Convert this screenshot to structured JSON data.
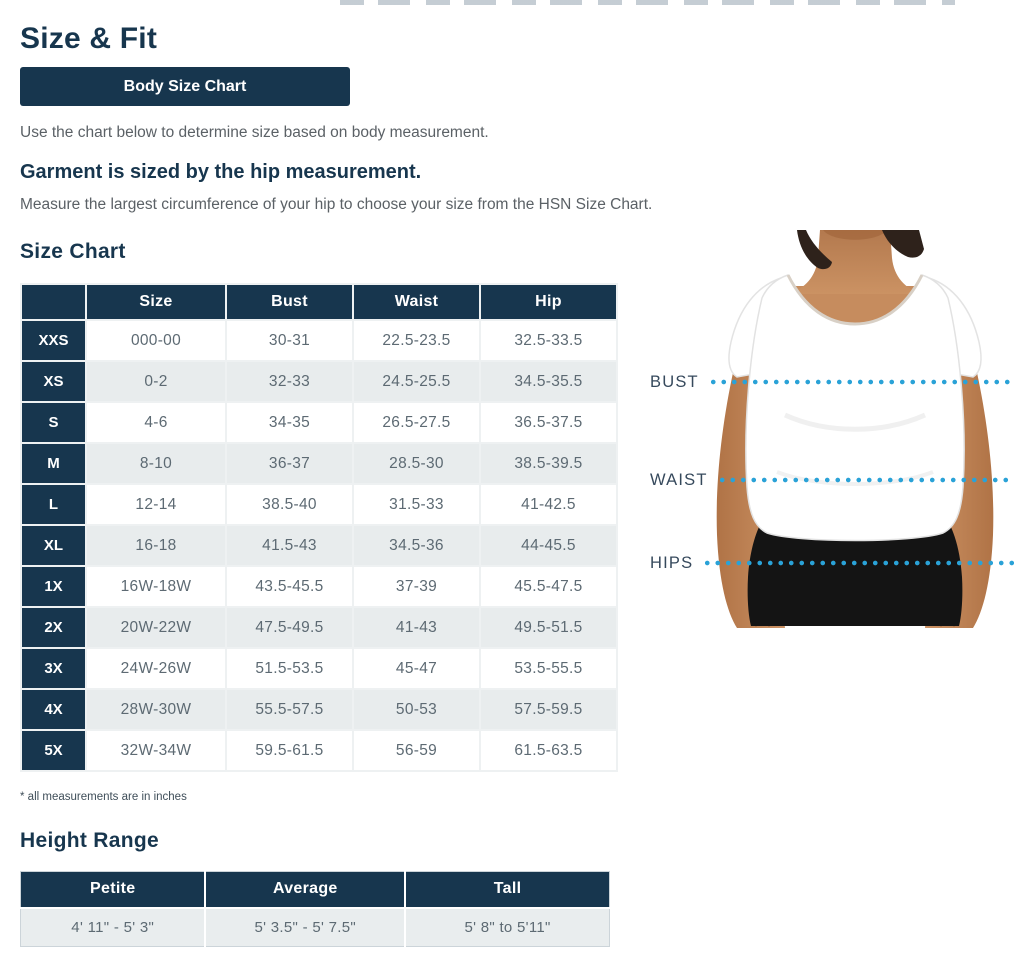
{
  "page": {
    "title": "Size & Fit",
    "button": "Body Size Chart",
    "intro": "Use the chart below to determine size based on body measurement.",
    "garment_heading": "Garment is sized by the hip measurement.",
    "garment_sub": "Measure the largest circumference of your hip to choose your size from the HSN Size Chart."
  },
  "size_chart": {
    "heading": "Size Chart",
    "columns": [
      "Size",
      "Bust",
      "Waist",
      "Hip"
    ],
    "rows": [
      {
        "label": "XXS",
        "size": "000-00",
        "bust": "30-31",
        "waist": "22.5-23.5",
        "hip": "32.5-33.5"
      },
      {
        "label": "XS",
        "size": "0-2",
        "bust": "32-33",
        "waist": "24.5-25.5",
        "hip": "34.5-35.5"
      },
      {
        "label": "S",
        "size": "4-6",
        "bust": "34-35",
        "waist": "26.5-27.5",
        "hip": "36.5-37.5"
      },
      {
        "label": "M",
        "size": "8-10",
        "bust": "36-37",
        "waist": "28.5-30",
        "hip": "38.5-39.5"
      },
      {
        "label": "L",
        "size": "12-14",
        "bust": "38.5-40",
        "waist": "31.5-33",
        "hip": "41-42.5"
      },
      {
        "label": "XL",
        "size": "16-18",
        "bust": "41.5-43",
        "waist": "34.5-36",
        "hip": "44-45.5"
      },
      {
        "label": "1X",
        "size": "16W-18W",
        "bust": "43.5-45.5",
        "waist": "37-39",
        "hip": "45.5-47.5"
      },
      {
        "label": "2X",
        "size": "20W-22W",
        "bust": "47.5-49.5",
        "waist": "41-43",
        "hip": "49.5-51.5"
      },
      {
        "label": "3X",
        "size": "24W-26W",
        "bust": "51.5-53.5",
        "waist": "45-47",
        "hip": "53.5-55.5"
      },
      {
        "label": "4X",
        "size": "28W-30W",
        "bust": "55.5-57.5",
        "waist": "50-53",
        "hip": "57.5-59.5"
      },
      {
        "label": "5X",
        "size": "32W-34W",
        "bust": "59.5-61.5",
        "waist": "56-59",
        "hip": "61.5-63.5"
      }
    ],
    "footnote": "* all measurements are in inches"
  },
  "figure": {
    "labels": [
      "BUST",
      "WAIST",
      "HIPS"
    ]
  },
  "height_range": {
    "heading": "Height Range",
    "columns": [
      "Petite",
      "Average",
      "Tall"
    ],
    "values": [
      "4' 11\" - 5' 3\"",
      "5' 3.5\" - 5' 7.5\"",
      "5' 8\" to 5'11\""
    ]
  },
  "colors": {
    "navy": "#17364e",
    "row_alt": "#e8eced",
    "dot_cyan": "#2aa2d7"
  }
}
